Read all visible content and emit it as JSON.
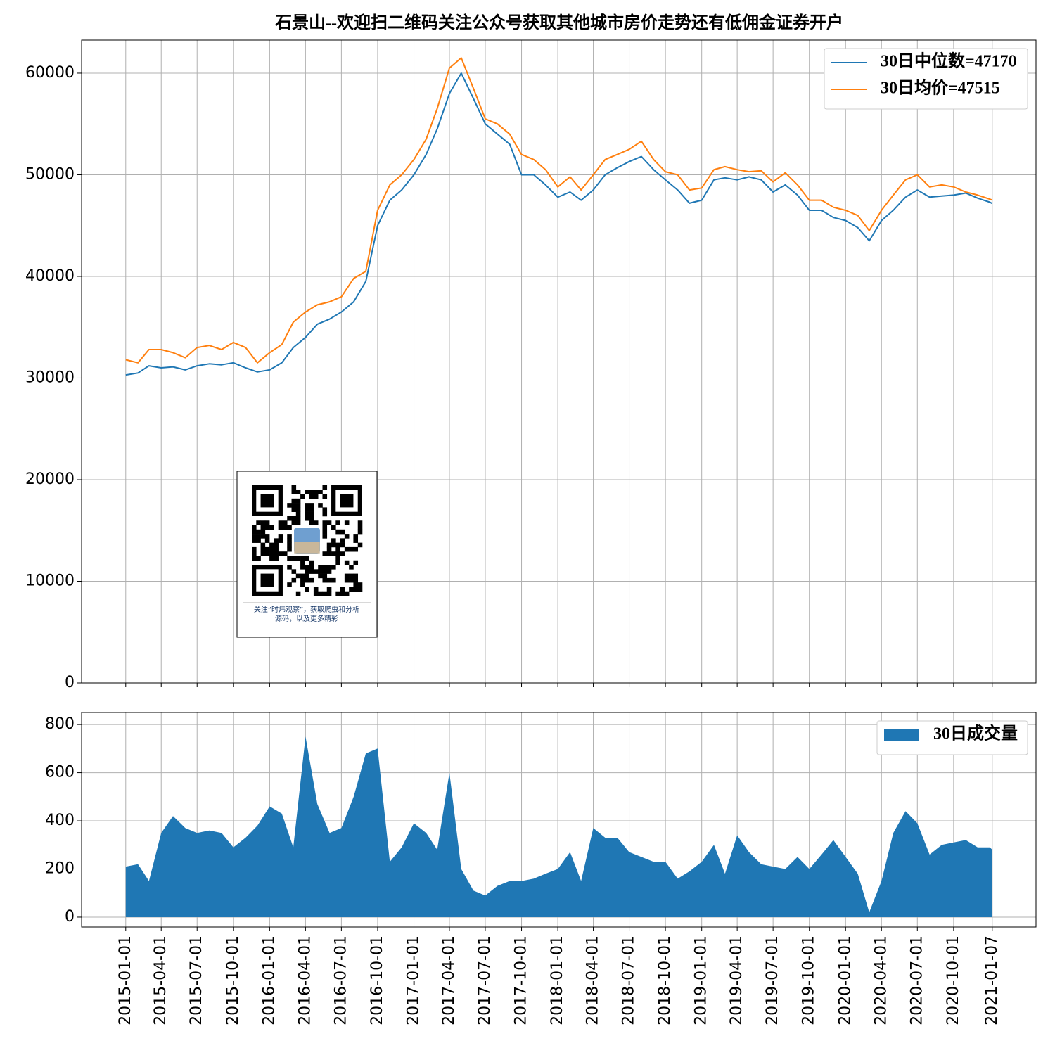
{
  "chart_data": [
    {
      "type": "line",
      "title": "石景山--欢迎扫二维码关注公众号获取其他城市房价走势还有低佣金证券开户",
      "x": [
        "2015-01-01",
        "2015-02-01",
        "2015-03-01",
        "2015-04-01",
        "2015-05-01",
        "2015-06-01",
        "2015-07-01",
        "2015-08-01",
        "2015-09-01",
        "2015-10-01",
        "2015-11-01",
        "2015-12-01",
        "2016-01-01",
        "2016-02-01",
        "2016-03-01",
        "2016-04-01",
        "2016-05-01",
        "2016-06-01",
        "2016-07-01",
        "2016-08-01",
        "2016-09-01",
        "2016-10-01",
        "2016-11-01",
        "2016-12-01",
        "2017-01-01",
        "2017-02-01",
        "2017-03-01",
        "2017-04-01",
        "2017-05-01",
        "2017-06-01",
        "2017-07-01",
        "2017-08-01",
        "2017-09-01",
        "2017-10-01",
        "2017-11-01",
        "2017-12-01",
        "2018-01-01",
        "2018-02-01",
        "2018-03-01",
        "2018-04-01",
        "2018-05-01",
        "2018-06-01",
        "2018-07-01",
        "2018-08-01",
        "2018-09-01",
        "2018-10-01",
        "2018-11-01",
        "2018-12-01",
        "2019-01-01",
        "2019-02-01",
        "2019-03-01",
        "2019-04-01",
        "2019-05-01",
        "2019-06-01",
        "2019-07-01",
        "2019-08-01",
        "2019-09-01",
        "2019-10-01",
        "2019-11-01",
        "2019-12-01",
        "2020-01-01",
        "2020-02-01",
        "2020-03-01",
        "2020-04-01",
        "2020-05-01",
        "2020-06-01",
        "2020-07-01",
        "2020-08-01",
        "2020-09-01",
        "2020-10-01",
        "2020-11-01",
        "2020-12-01",
        "2021-01-01",
        "2021-01-07"
      ],
      "series": [
        {
          "name": "30日中位数=47170",
          "color": "#1f77b4",
          "values": [
            30300,
            30500,
            31200,
            31000,
            31100,
            30800,
            31200,
            31400,
            31300,
            31500,
            31000,
            30600,
            30800,
            31500,
            33000,
            34000,
            35300,
            35800,
            36500,
            37500,
            39500,
            45000,
            47500,
            48500,
            50000,
            52000,
            54500,
            58000,
            60000,
            57500,
            55000,
            54000,
            53000,
            50000,
            50000,
            49000,
            47800,
            48300,
            47500,
            48500,
            50000,
            50700,
            51300,
            51800,
            50500,
            49500,
            48500,
            47200,
            47500,
            49500,
            49700,
            49500,
            49800,
            49500,
            48300,
            49000,
            48000,
            46500,
            46500,
            45800,
            45500,
            44800,
            43500,
            45500,
            46500,
            47800,
            48500,
            47800,
            47900,
            48000,
            48200,
            47700,
            47300,
            47170
          ]
        },
        {
          "name": "30日均价=47515",
          "color": "#ff7f0e",
          "values": [
            31800,
            31500,
            32800,
            32800,
            32500,
            32000,
            33000,
            33200,
            32800,
            33500,
            33000,
            31500,
            32500,
            33300,
            35500,
            36500,
            37200,
            37500,
            38000,
            39800,
            40500,
            46500,
            49000,
            50000,
            51500,
            53500,
            56500,
            60500,
            61500,
            58500,
            55500,
            55000,
            54000,
            52000,
            51500,
            50500,
            48800,
            49800,
            48500,
            50000,
            51500,
            52000,
            52500,
            53300,
            51500,
            50300,
            50000,
            48500,
            48700,
            50500,
            50800,
            50500,
            50300,
            50400,
            49300,
            50200,
            49000,
            47500,
            47500,
            46800,
            46500,
            46000,
            44500,
            46500,
            48000,
            49500,
            50000,
            48800,
            49000,
            48800,
            48300,
            48000,
            47600,
            47515
          ]
        }
      ],
      "xlim": [
        "2014-09-11",
        "2021-04-28"
      ],
      "xticks": [
        "2015-01-01",
        "2015-04-01",
        "2015-07-01",
        "2015-10-01",
        "2016-01-01",
        "2016-04-01",
        "2016-07-01",
        "2016-10-01",
        "2017-01-01",
        "2017-04-01",
        "2017-07-01",
        "2017-10-01",
        "2018-01-01",
        "2018-04-01",
        "2018-07-01",
        "2018-10-01",
        "2019-01-01",
        "2019-04-01",
        "2019-07-01",
        "2019-10-01",
        "2020-01-01",
        "2020-04-01",
        "2020-07-01",
        "2020-10-01",
        "2021-01-07"
      ],
      "ylim": [
        0,
        63250
      ],
      "yticks": [
        0,
        10000,
        20000,
        30000,
        40000,
        50000,
        60000
      ],
      "grid": true,
      "legend": "upper right",
      "annotations": [
        "关注“时炜观察”，获取爬虫和分析",
        "源码，以及更多精彩"
      ]
    },
    {
      "type": "area",
      "x": [
        "2015-01-01",
        "2015-02-01",
        "2015-03-01",
        "2015-04-01",
        "2015-05-01",
        "2015-06-01",
        "2015-07-01",
        "2015-08-01",
        "2015-09-01",
        "2015-10-01",
        "2015-11-01",
        "2015-12-01",
        "2016-01-01",
        "2016-02-01",
        "2016-03-01",
        "2016-04-01",
        "2016-05-01",
        "2016-06-01",
        "2016-07-01",
        "2016-08-01",
        "2016-09-01",
        "2016-10-01",
        "2016-11-01",
        "2016-12-01",
        "2017-01-01",
        "2017-02-01",
        "2017-03-01",
        "2017-04-01",
        "2017-05-01",
        "2017-06-01",
        "2017-07-01",
        "2017-08-01",
        "2017-09-01",
        "2017-10-01",
        "2017-11-01",
        "2017-12-01",
        "2018-01-01",
        "2018-02-01",
        "2018-03-01",
        "2018-04-01",
        "2018-05-01",
        "2018-06-01",
        "2018-07-01",
        "2018-08-01",
        "2018-09-01",
        "2018-10-01",
        "2018-11-01",
        "2018-12-01",
        "2019-01-01",
        "2019-02-01",
        "2019-03-01",
        "2019-04-01",
        "2019-05-01",
        "2019-06-01",
        "2019-07-01",
        "2019-08-01",
        "2019-09-01",
        "2019-10-01",
        "2019-11-01",
        "2019-12-01",
        "2020-01-01",
        "2020-02-01",
        "2020-03-01",
        "2020-04-01",
        "2020-05-01",
        "2020-06-01",
        "2020-07-01",
        "2020-08-01",
        "2020-09-01",
        "2020-10-01",
        "2020-11-01",
        "2020-12-01",
        "2021-01-01",
        "2021-01-07"
      ],
      "series": [
        {
          "name": "30日成交量",
          "color": "#1f77b4",
          "values": [
            210,
            220,
            150,
            350,
            420,
            370,
            350,
            360,
            350,
            290,
            330,
            380,
            460,
            430,
            290,
            750,
            470,
            350,
            370,
            500,
            680,
            700,
            230,
            290,
            390,
            350,
            280,
            600,
            200,
            110,
            90,
            130,
            150,
            150,
            160,
            180,
            200,
            270,
            150,
            370,
            330,
            330,
            270,
            250,
            230,
            230,
            160,
            190,
            230,
            300,
            180,
            340,
            270,
            220,
            210,
            200,
            250,
            200,
            260,
            320,
            250,
            180,
            20,
            150,
            350,
            440,
            390,
            260,
            300,
            310,
            320,
            290,
            290,
            280
          ]
        }
      ],
      "xlim": [
        "2014-09-11",
        "2021-04-28"
      ],
      "xticks": [
        "2015-01-01",
        "2015-04-01",
        "2015-07-01",
        "2015-10-01",
        "2016-01-01",
        "2016-04-01",
        "2016-07-01",
        "2016-10-01",
        "2017-01-01",
        "2017-04-01",
        "2017-07-01",
        "2017-10-01",
        "2018-01-01",
        "2018-04-01",
        "2018-07-01",
        "2018-10-01",
        "2019-01-01",
        "2019-04-01",
        "2019-07-01",
        "2019-10-01",
        "2020-01-01",
        "2020-04-01",
        "2020-07-01",
        "2020-10-01",
        "2021-01-07"
      ],
      "ylim": [
        -41,
        850
      ],
      "yticks": [
        0,
        200,
        400,
        600,
        800
      ],
      "grid": true,
      "legend": "upper right"
    }
  ]
}
